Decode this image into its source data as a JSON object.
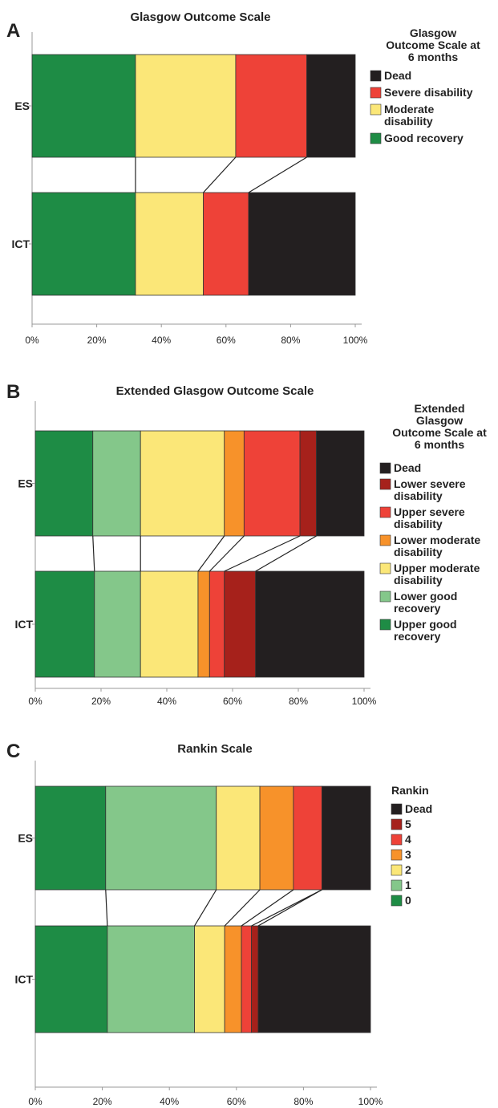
{
  "chart_data": [
    {
      "type": "bar",
      "stacked": "horizontal-percent",
      "panel": "A",
      "title": "Glasgow Outcome Scale",
      "legend_title": [
        "Glasgow",
        "Outcome Scale at",
        "6 months"
      ],
      "legend_placement": "right",
      "categories": [
        "ES",
        "ICT"
      ],
      "xlim": [
        0,
        100
      ],
      "x_ticks": [
        "0%",
        "20%",
        "40%",
        "60%",
        "80%",
        "100%"
      ],
      "series": [
        {
          "name": "Good recovery",
          "color": "#1e8c45",
          "values": [
            32,
            32
          ]
        },
        {
          "name": "Moderate disability",
          "color": "#fbe778",
          "values": [
            31,
            21
          ]
        },
        {
          "name": "Severe disability",
          "color": "#ee4238",
          "values": [
            22,
            14
          ]
        },
        {
          "name": "Dead",
          "color": "#231f20",
          "values": [
            15,
            33
          ]
        }
      ],
      "legend_order": [
        "Dead",
        "Severe disability",
        "Moderate disability",
        "Good recovery"
      ],
      "legend_labels": {
        "Dead": [
          "Dead"
        ],
        "Severe disability": [
          "Severe disability"
        ],
        "Moderate disability": [
          "Moderate",
          "disability"
        ],
        "Good recovery": [
          "Good recovery"
        ]
      }
    },
    {
      "type": "bar",
      "stacked": "horizontal-percent",
      "panel": "B",
      "title": "Extended Glasgow Outcome Scale",
      "legend_title": [
        "Extended",
        "Glasgow",
        "Outcome Scale at",
        "6 months"
      ],
      "legend_placement": "right",
      "categories": [
        "ES",
        "ICT"
      ],
      "xlim": [
        0,
        100
      ],
      "x_ticks": [
        "0%",
        "20%",
        "40%",
        "60%",
        "80%",
        "100%"
      ],
      "series": [
        {
          "name": "Upper good recovery",
          "color": "#1e8c45",
          "values": [
            17.5,
            18
          ]
        },
        {
          "name": "Lower good recovery",
          "color": "#84c78a",
          "values": [
            14.5,
            14
          ]
        },
        {
          "name": "Upper moderate disability",
          "color": "#fbe778",
          "values": [
            25.5,
            17.5
          ]
        },
        {
          "name": "Lower moderate disability",
          "color": "#f7922a",
          "values": [
            6,
            3.5
          ]
        },
        {
          "name": "Upper severe disability",
          "color": "#ee4238",
          "values": [
            17,
            4.5
          ]
        },
        {
          "name": "Lower severe disability",
          "color": "#a6211b",
          "values": [
            5,
            9.5
          ]
        },
        {
          "name": "Dead",
          "color": "#231f20",
          "values": [
            14.5,
            33
          ]
        }
      ],
      "legend_order": [
        "Dead",
        "Lower severe disability",
        "Upper severe disability",
        "Lower moderate disability",
        "Upper moderate disability",
        "Lower good recovery",
        "Upper good recovery"
      ],
      "legend_labels": {
        "Dead": [
          "Dead"
        ],
        "Lower severe disability": [
          "Lower severe",
          "disability"
        ],
        "Upper severe disability": [
          "Upper severe",
          "disability"
        ],
        "Lower moderate disability": [
          "Lower moderate",
          "disability"
        ],
        "Upper moderate disability": [
          "Upper moderate",
          "disability"
        ],
        "Lower good recovery": [
          "Lower good",
          "recovery"
        ],
        "Upper good recovery": [
          "Upper good",
          "recovery"
        ]
      }
    },
    {
      "type": "bar",
      "stacked": "horizontal-percent",
      "panel": "C",
      "title": "Rankin Scale",
      "legend_title": [
        "Rankin"
      ],
      "legend_placement": "right",
      "categories": [
        "ES",
        "ICT"
      ],
      "xlim": [
        0,
        100
      ],
      "x_ticks": [
        "0%",
        "20%",
        "40%",
        "60%",
        "80%",
        "100%"
      ],
      "series": [
        {
          "name": "0",
          "color": "#1e8c45",
          "values": [
            21,
            21.5
          ]
        },
        {
          "name": "1",
          "color": "#84c78a",
          "values": [
            33,
            26
          ]
        },
        {
          "name": "2",
          "color": "#fbe778",
          "values": [
            13,
            9
          ]
        },
        {
          "name": "3",
          "color": "#f7922a",
          "values": [
            10,
            5
          ]
        },
        {
          "name": "4",
          "color": "#ee4238",
          "values": [
            8.5,
            3
          ]
        },
        {
          "name": "5",
          "color": "#a6211b",
          "values": [
            0,
            2
          ]
        },
        {
          "name": "Dead",
          "color": "#231f20",
          "values": [
            14.5,
            33.5
          ]
        }
      ],
      "legend_order": [
        "Dead",
        "5",
        "4",
        "3",
        "2",
        "1",
        "0"
      ],
      "legend_labels": {
        "Dead": [
          "Dead"
        ],
        "5": [
          "5"
        ],
        "4": [
          "4"
        ],
        "3": [
          "3"
        ],
        "2": [
          "2"
        ],
        "1": [
          "1"
        ],
        "0": [
          "0"
        ]
      }
    }
  ]
}
